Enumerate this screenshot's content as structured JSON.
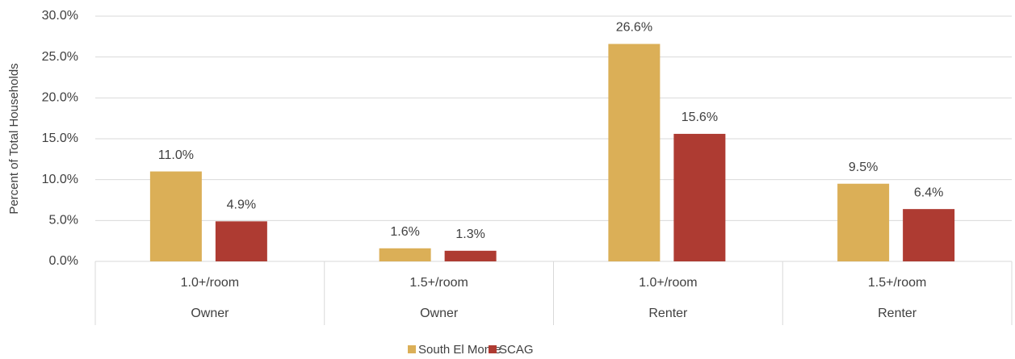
{
  "chart_data": {
    "type": "bar",
    "y_label": "Percent of Total Households",
    "categories": [
      "1.0+/room",
      "1.5+/room",
      "1.0+/room",
      "1.5+/room"
    ],
    "groups": [
      "Owner",
      "Owner",
      "Renter",
      "Renter"
    ],
    "series": [
      {
        "name": "South El Monte",
        "color": "#dbaf57",
        "values": [
          11.0,
          1.6,
          26.6,
          9.5
        ],
        "value_labels": [
          "11.0%",
          "1.6%",
          "26.6%",
          "9.5%"
        ]
      },
      {
        "name": "SCAG",
        "color": "#ae3b32",
        "values": [
          4.9,
          1.3,
          15.6,
          6.4
        ],
        "value_labels": [
          "4.9%",
          "1.3%",
          "15.6%",
          "6.4%"
        ]
      }
    ],
    "ylim": [
      0,
      30
    ],
    "yticks": [
      {
        "value": 0,
        "label": "0.0%"
      },
      {
        "value": 5,
        "label": "5.0%"
      },
      {
        "value": 10,
        "label": "10.0%"
      },
      {
        "value": 15,
        "label": "15.0%"
      },
      {
        "value": 20,
        "label": "20.0%"
      },
      {
        "value": 25,
        "label": "25.0%"
      },
      {
        "value": 30,
        "label": "30.0%"
      }
    ],
    "grid": true,
    "legend": "bottom"
  }
}
